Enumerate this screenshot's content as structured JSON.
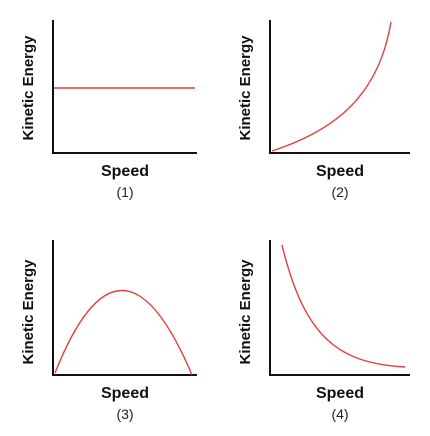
{
  "panels": [
    {
      "y_label": "Kinetic Energy",
      "x_label": "Speed",
      "caption": "(1)"
    },
    {
      "y_label": "Kinetic Energy",
      "x_label": "Speed",
      "caption": "(2)"
    },
    {
      "y_label": "Kinetic Energy",
      "x_label": "Speed",
      "caption": "(3)"
    },
    {
      "y_label": "Kinetic Energy",
      "x_label": "Speed",
      "caption": "(4)"
    }
  ]
}
